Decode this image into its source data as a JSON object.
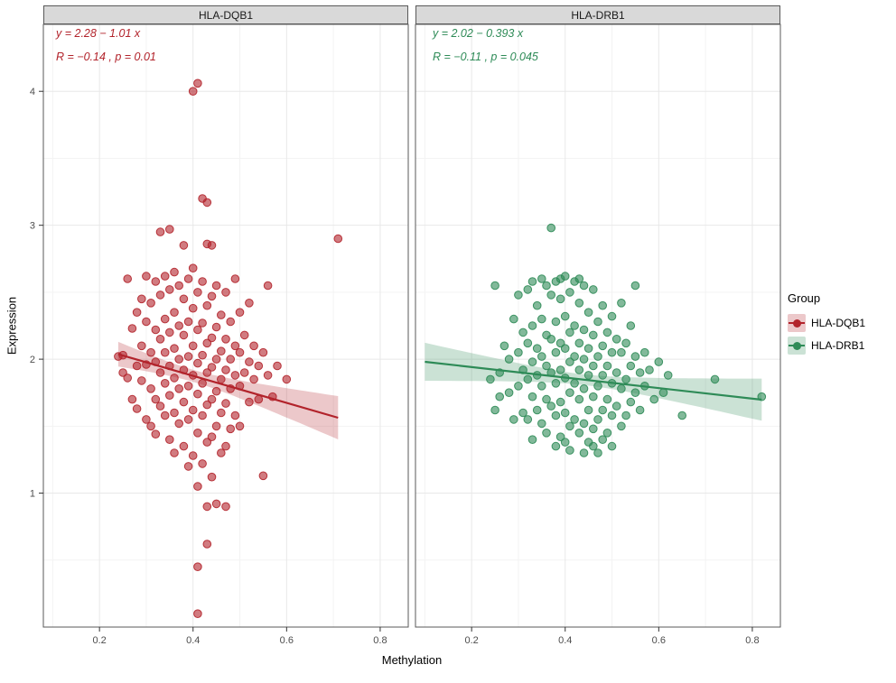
{
  "figure": {
    "background": "#FFFFFF"
  },
  "chart_data": {
    "type": "scatter",
    "title": "",
    "xlabel": "Methylation",
    "ylabel": "Expression",
    "x_ticks": [
      0.2,
      0.4,
      0.6,
      0.8
    ],
    "y_ticks": [
      1,
      2,
      3,
      4
    ],
    "xlim": [
      0.08,
      0.86
    ],
    "ylim": [
      0,
      4.5
    ],
    "grid": true,
    "legend_position": "right",
    "legend": {
      "title": "Group",
      "entries": [
        {
          "label": "HLA-DQB1",
          "color": "#B2232B"
        },
        {
          "label": "HLA-DRB1",
          "color": "#2E8B57"
        }
      ]
    },
    "facets": [
      {
        "title": "HLA-DQB1",
        "color": "#B2232B",
        "annotation_line1": "y = 2.28 − 1.01 x",
        "annotation_line2": "R = −0.14 , p = 0.01",
        "regression": {
          "intercept": 2.28,
          "slope": -1.01,
          "x_start": 0.24,
          "x_end": 0.71
        },
        "ribbon": {
          "center_x": 0.4,
          "base_halfwidth": 0.045,
          "spread": 0.09
        },
        "points": [
          [
            0.25,
            2.03
          ],
          [
            0.26,
            1.86
          ],
          [
            0.26,
            2.6
          ],
          [
            0.27,
            2.23
          ],
          [
            0.27,
            1.7
          ],
          [
            0.28,
            2.35
          ],
          [
            0.28,
            1.95
          ],
          [
            0.28,
            1.63
          ],
          [
            0.29,
            2.1
          ],
          [
            0.29,
            1.84
          ],
          [
            0.3,
            2.62
          ],
          [
            0.3,
            2.28
          ],
          [
            0.3,
            1.96
          ],
          [
            0.3,
            1.55
          ],
          [
            0.31,
            2.42
          ],
          [
            0.31,
            2.05
          ],
          [
            0.31,
            1.78
          ],
          [
            0.31,
            1.5
          ],
          [
            0.32,
            2.58
          ],
          [
            0.32,
            2.22
          ],
          [
            0.32,
            1.98
          ],
          [
            0.32,
            1.7
          ],
          [
            0.32,
            1.44
          ],
          [
            0.33,
            2.95
          ],
          [
            0.33,
            2.48
          ],
          [
            0.33,
            2.15
          ],
          [
            0.33,
            1.9
          ],
          [
            0.33,
            1.65
          ],
          [
            0.34,
            2.62
          ],
          [
            0.34,
            2.3
          ],
          [
            0.34,
            2.05
          ],
          [
            0.34,
            1.82
          ],
          [
            0.34,
            1.58
          ],
          [
            0.35,
            2.52
          ],
          [
            0.35,
            2.2
          ],
          [
            0.35,
            1.95
          ],
          [
            0.35,
            1.73
          ],
          [
            0.35,
            1.4
          ],
          [
            0.36,
            2.65
          ],
          [
            0.36,
            2.35
          ],
          [
            0.36,
            2.08
          ],
          [
            0.36,
            1.86
          ],
          [
            0.36,
            1.6
          ],
          [
            0.36,
            1.3
          ],
          [
            0.37,
            2.55
          ],
          [
            0.37,
            2.25
          ],
          [
            0.37,
            2.0
          ],
          [
            0.37,
            1.78
          ],
          [
            0.37,
            1.52
          ],
          [
            0.38,
            2.85
          ],
          [
            0.38,
            2.45
          ],
          [
            0.38,
            2.18
          ],
          [
            0.38,
            1.92
          ],
          [
            0.38,
            1.68
          ],
          [
            0.38,
            1.35
          ],
          [
            0.39,
            2.6
          ],
          [
            0.39,
            2.28
          ],
          [
            0.39,
            2.02
          ],
          [
            0.39,
            1.8
          ],
          [
            0.39,
            1.55
          ],
          [
            0.39,
            1.2
          ],
          [
            0.4,
            4.0
          ],
          [
            0.4,
            2.68
          ],
          [
            0.4,
            2.38
          ],
          [
            0.4,
            2.1
          ],
          [
            0.4,
            1.88
          ],
          [
            0.4,
            1.62
          ],
          [
            0.4,
            1.28
          ],
          [
            0.41,
            4.06
          ],
          [
            0.41,
            2.5
          ],
          [
            0.41,
            2.22
          ],
          [
            0.41,
            1.97
          ],
          [
            0.41,
            1.74
          ],
          [
            0.41,
            1.45
          ],
          [
            0.41,
            1.05
          ],
          [
            0.41,
            0.45
          ],
          [
            0.41,
            0.1
          ],
          [
            0.42,
            3.2
          ],
          [
            0.42,
            2.58
          ],
          [
            0.42,
            2.27
          ],
          [
            0.42,
            2.03
          ],
          [
            0.42,
            1.82
          ],
          [
            0.42,
            1.58
          ],
          [
            0.42,
            1.22
          ],
          [
            0.43,
            3.17
          ],
          [
            0.43,
            2.86
          ],
          [
            0.43,
            2.4
          ],
          [
            0.43,
            2.12
          ],
          [
            0.43,
            1.9
          ],
          [
            0.43,
            1.66
          ],
          [
            0.43,
            1.38
          ],
          [
            0.43,
            0.9
          ],
          [
            0.43,
            0.62
          ],
          [
            0.44,
            2.85
          ],
          [
            0.44,
            2.47
          ],
          [
            0.44,
            2.16
          ],
          [
            0.44,
            1.94
          ],
          [
            0.44,
            1.7
          ],
          [
            0.44,
            1.42
          ],
          [
            0.44,
            1.12
          ],
          [
            0.45,
            2.55
          ],
          [
            0.45,
            2.24
          ],
          [
            0.45,
            2.0
          ],
          [
            0.45,
            1.76
          ],
          [
            0.45,
            1.5
          ],
          [
            0.45,
            0.92
          ],
          [
            0.46,
            2.33
          ],
          [
            0.46,
            2.06
          ],
          [
            0.46,
            1.85
          ],
          [
            0.46,
            1.6
          ],
          [
            0.46,
            1.3
          ],
          [
            0.47,
            2.5
          ],
          [
            0.47,
            2.15
          ],
          [
            0.47,
            1.92
          ],
          [
            0.47,
            1.67
          ],
          [
            0.47,
            1.35
          ],
          [
            0.47,
            0.9
          ],
          [
            0.48,
            2.28
          ],
          [
            0.48,
            2.0
          ],
          [
            0.48,
            1.78
          ],
          [
            0.48,
            1.48
          ],
          [
            0.49,
            2.6
          ],
          [
            0.49,
            2.1
          ],
          [
            0.49,
            1.88
          ],
          [
            0.49,
            1.58
          ],
          [
            0.5,
            2.35
          ],
          [
            0.5,
            2.05
          ],
          [
            0.5,
            1.8
          ],
          [
            0.5,
            1.5
          ],
          [
            0.51,
            2.18
          ],
          [
            0.51,
            1.9
          ],
          [
            0.52,
            2.42
          ],
          [
            0.52,
            1.98
          ],
          [
            0.52,
            1.68
          ],
          [
            0.53,
            2.1
          ],
          [
            0.53,
            1.85
          ],
          [
            0.54,
            1.95
          ],
          [
            0.54,
            1.7
          ],
          [
            0.55,
            2.05
          ],
          [
            0.55,
            1.13
          ],
          [
            0.56,
            2.55
          ],
          [
            0.56,
            1.88
          ],
          [
            0.57,
            1.72
          ],
          [
            0.58,
            1.95
          ],
          [
            0.6,
            1.85
          ],
          [
            0.71,
            2.9
          ],
          [
            0.35,
            2.97
          ],
          [
            0.24,
            2.02
          ],
          [
            0.25,
            1.9
          ],
          [
            0.29,
            2.45
          ]
        ]
      },
      {
        "title": "HLA-DRB1",
        "color": "#2E8B57",
        "annotation_line1": "y = 2.02 − 0.393 x",
        "annotation_line2": "R = −0.11 , p = 0.045",
        "regression": {
          "intercept": 2.02,
          "slope": -0.393,
          "x_start": 0.1,
          "x_end": 0.82
        },
        "ribbon": {
          "center_x": 0.44,
          "base_halfwidth": 0.04,
          "spread": 0.1
        },
        "points": [
          [
            0.24,
            1.85
          ],
          [
            0.25,
            2.55
          ],
          [
            0.25,
            1.62
          ],
          [
            0.26,
            1.9
          ],
          [
            0.26,
            1.72
          ],
          [
            0.27,
            2.1
          ],
          [
            0.28,
            2.0
          ],
          [
            0.28,
            1.75
          ],
          [
            0.29,
            2.3
          ],
          [
            0.29,
            1.55
          ],
          [
            0.3,
            2.48
          ],
          [
            0.3,
            2.05
          ],
          [
            0.3,
            1.8
          ],
          [
            0.31,
            2.2
          ],
          [
            0.31,
            1.92
          ],
          [
            0.31,
            1.6
          ],
          [
            0.32,
            2.52
          ],
          [
            0.32,
            2.12
          ],
          [
            0.32,
            1.85
          ],
          [
            0.32,
            1.55
          ],
          [
            0.33,
            2.58
          ],
          [
            0.33,
            2.25
          ],
          [
            0.33,
            1.98
          ],
          [
            0.33,
            1.72
          ],
          [
            0.33,
            1.4
          ],
          [
            0.34,
            2.4
          ],
          [
            0.34,
            2.08
          ],
          [
            0.34,
            1.88
          ],
          [
            0.34,
            1.62
          ],
          [
            0.35,
            2.6
          ],
          [
            0.35,
            2.3
          ],
          [
            0.35,
            2.02
          ],
          [
            0.35,
            1.8
          ],
          [
            0.35,
            1.52
          ],
          [
            0.36,
            2.55
          ],
          [
            0.36,
            2.18
          ],
          [
            0.36,
            1.95
          ],
          [
            0.36,
            1.7
          ],
          [
            0.36,
            1.45
          ],
          [
            0.37,
            2.98
          ],
          [
            0.37,
            2.48
          ],
          [
            0.37,
            2.15
          ],
          [
            0.37,
            1.9
          ],
          [
            0.37,
            1.65
          ],
          [
            0.38,
            2.58
          ],
          [
            0.38,
            2.28
          ],
          [
            0.38,
            2.05
          ],
          [
            0.38,
            1.82
          ],
          [
            0.38,
            1.58
          ],
          [
            0.38,
            1.35
          ],
          [
            0.39,
            2.6
          ],
          [
            0.39,
            2.45
          ],
          [
            0.39,
            2.12
          ],
          [
            0.39,
            1.92
          ],
          [
            0.39,
            1.68
          ],
          [
            0.39,
            1.42
          ],
          [
            0.4,
            2.62
          ],
          [
            0.4,
            2.32
          ],
          [
            0.4,
            2.08
          ],
          [
            0.4,
            1.86
          ],
          [
            0.4,
            1.6
          ],
          [
            0.4,
            1.38
          ],
          [
            0.41,
            2.5
          ],
          [
            0.41,
            2.2
          ],
          [
            0.41,
            1.98
          ],
          [
            0.41,
            1.75
          ],
          [
            0.41,
            1.5
          ],
          [
            0.41,
            1.32
          ],
          [
            0.42,
            2.58
          ],
          [
            0.42,
            2.25
          ],
          [
            0.42,
            2.02
          ],
          [
            0.42,
            1.82
          ],
          [
            0.42,
            1.55
          ],
          [
            0.43,
            2.6
          ],
          [
            0.43,
            2.42
          ],
          [
            0.43,
            2.12
          ],
          [
            0.43,
            1.92
          ],
          [
            0.43,
            1.7
          ],
          [
            0.43,
            1.45
          ],
          [
            0.44,
            2.55
          ],
          [
            0.44,
            2.22
          ],
          [
            0.44,
            2.0
          ],
          [
            0.44,
            1.78
          ],
          [
            0.44,
            1.52
          ],
          [
            0.44,
            1.3
          ],
          [
            0.45,
            2.35
          ],
          [
            0.45,
            2.08
          ],
          [
            0.45,
            1.88
          ],
          [
            0.45,
            1.62
          ],
          [
            0.45,
            1.38
          ],
          [
            0.46,
            2.52
          ],
          [
            0.46,
            2.18
          ],
          [
            0.46,
            1.95
          ],
          [
            0.46,
            1.72
          ],
          [
            0.46,
            1.48
          ],
          [
            0.46,
            1.35
          ],
          [
            0.47,
            2.28
          ],
          [
            0.47,
            2.02
          ],
          [
            0.47,
            1.8
          ],
          [
            0.47,
            1.55
          ],
          [
            0.47,
            1.3
          ],
          [
            0.48,
            2.4
          ],
          [
            0.48,
            2.1
          ],
          [
            0.48,
            1.88
          ],
          [
            0.48,
            1.62
          ],
          [
            0.48,
            1.4
          ],
          [
            0.49,
            2.2
          ],
          [
            0.49,
            1.95
          ],
          [
            0.49,
            1.7
          ],
          [
            0.49,
            1.45
          ],
          [
            0.5,
            2.32
          ],
          [
            0.5,
            2.05
          ],
          [
            0.5,
            1.82
          ],
          [
            0.5,
            1.58
          ],
          [
            0.5,
            1.35
          ],
          [
            0.51,
            2.15
          ],
          [
            0.51,
            1.9
          ],
          [
            0.51,
            1.65
          ],
          [
            0.52,
            2.42
          ],
          [
            0.52,
            2.05
          ],
          [
            0.52,
            1.78
          ],
          [
            0.52,
            1.5
          ],
          [
            0.53,
            2.12
          ],
          [
            0.53,
            1.85
          ],
          [
            0.53,
            1.58
          ],
          [
            0.54,
            2.25
          ],
          [
            0.54,
            1.95
          ],
          [
            0.54,
            1.68
          ],
          [
            0.55,
            2.55
          ],
          [
            0.55,
            2.02
          ],
          [
            0.55,
            1.75
          ],
          [
            0.56,
            1.9
          ],
          [
            0.56,
            1.62
          ],
          [
            0.57,
            2.05
          ],
          [
            0.57,
            1.8
          ],
          [
            0.58,
            1.92
          ],
          [
            0.59,
            1.7
          ],
          [
            0.6,
            1.98
          ],
          [
            0.61,
            1.75
          ],
          [
            0.62,
            1.88
          ],
          [
            0.65,
            1.58
          ],
          [
            0.72,
            1.85
          ],
          [
            0.82,
            1.72
          ]
        ]
      }
    ]
  }
}
